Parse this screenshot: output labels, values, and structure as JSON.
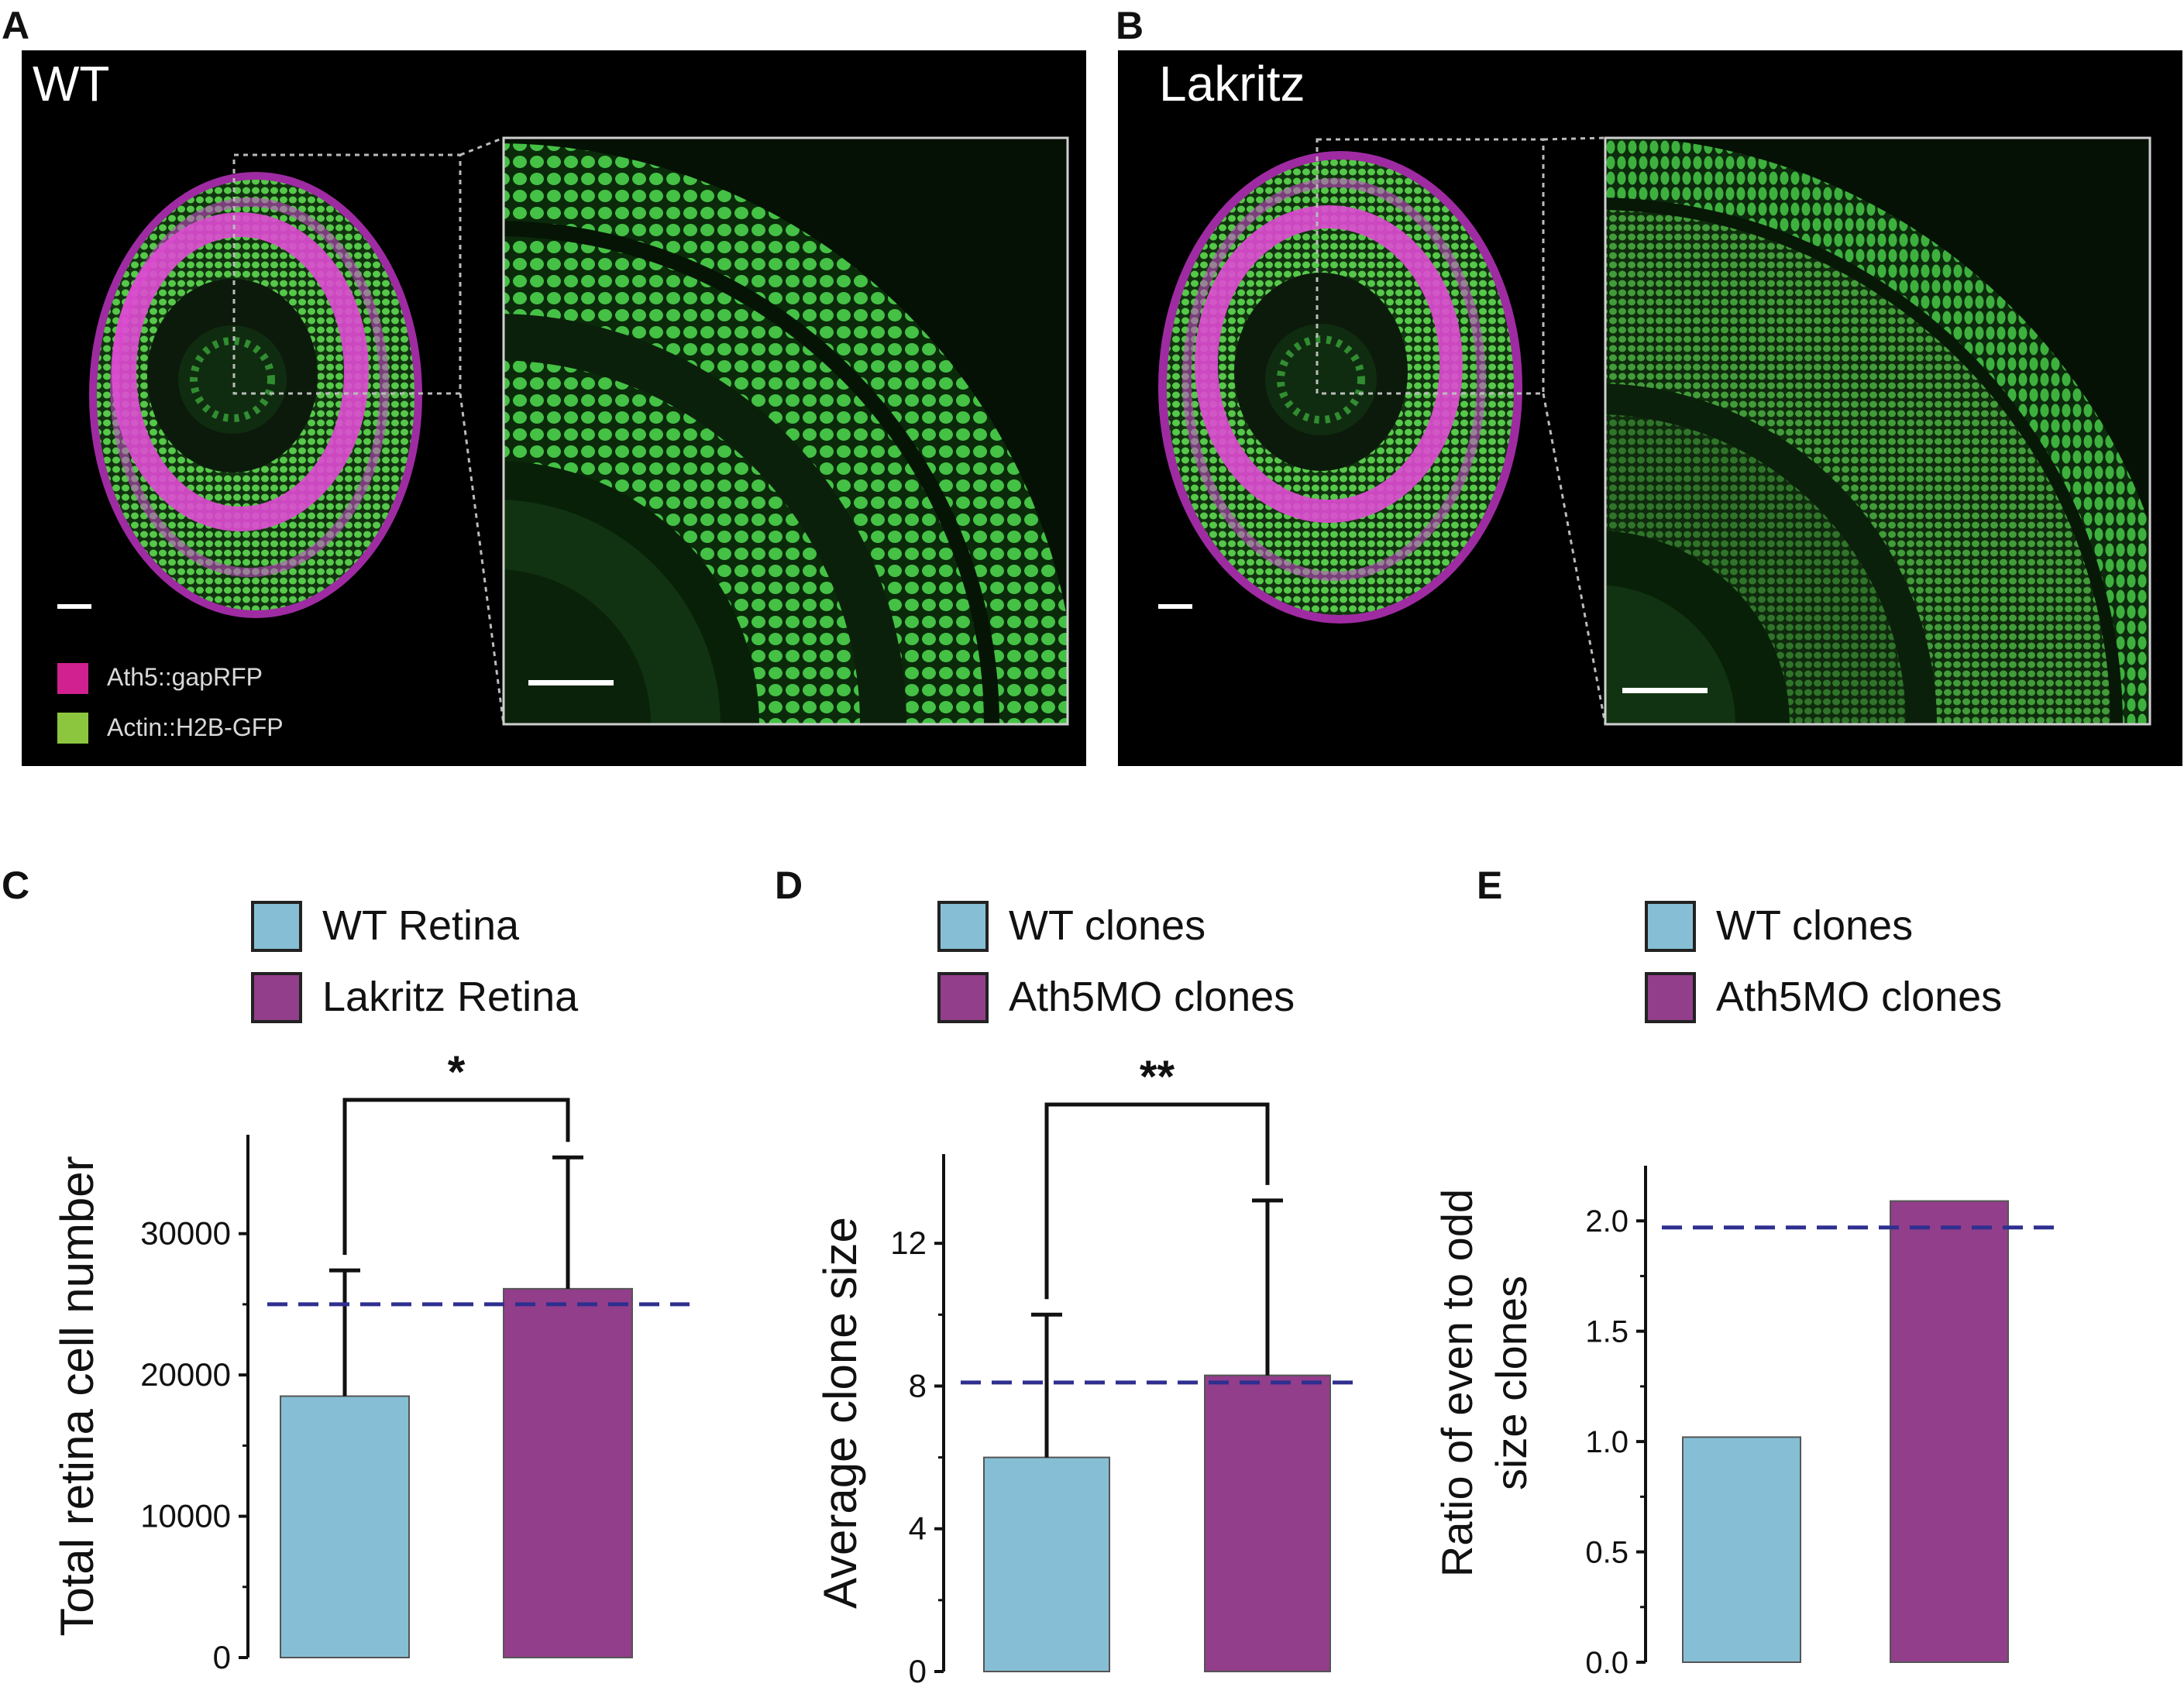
{
  "panels": {
    "A": {
      "letter": "A",
      "title": "WT",
      "legend": [
        {
          "label": "Ath5::gapRFP",
          "color": "#d1208f"
        },
        {
          "label": "Actin::H2B-GFP",
          "color": "#8cc63f"
        }
      ]
    },
    "B": {
      "letter": "B",
      "title": "Lakritz"
    }
  },
  "colors": {
    "wt_bar": "#86bfd5",
    "mut_bar": "#923e8b",
    "dashed": "#2e2f8f",
    "gfp": "#46c846",
    "rfp": "#d02ad8"
  },
  "chart_data": [
    {
      "letter": "C",
      "type": "bar",
      "categories": [
        "WT Retina",
        "Lakritz Retina"
      ],
      "values": [
        18500,
        26100
      ],
      "error_upper": [
        27400,
        35400
      ],
      "ylabel": "Total retina cell number",
      "ylim": [
        0,
        37000
      ],
      "yticks": [
        0,
        10000,
        20000,
        30000
      ],
      "ytick_labels": [
        "0",
        "10000",
        "20000",
        "30000"
      ],
      "reference_line": 25000,
      "significance": "*",
      "legend": [
        "WT Retina",
        "Lakritz Retina"
      ]
    },
    {
      "letter": "D",
      "type": "bar",
      "categories": [
        "WT clones",
        "Ath5MO clones"
      ],
      "values": [
        6.0,
        8.3
      ],
      "error_upper": [
        10.0,
        13.2
      ],
      "ylabel": "Average clone size",
      "ylim": [
        0,
        14.5
      ],
      "yticks": [
        0,
        4,
        8,
        12
      ],
      "ytick_labels": [
        "0",
        "4",
        "8",
        "12"
      ],
      "reference_line": 8.1,
      "significance": "**",
      "legend": [
        "WT clones",
        "Ath5MO clones"
      ]
    },
    {
      "letter": "E",
      "type": "bar",
      "categories": [
        "WT clones",
        "Ath5MO clones"
      ],
      "values": [
        1.02,
        2.09
      ],
      "error_upper": null,
      "ylabel_lines": [
        "Ratio of even to odd",
        "size clones"
      ],
      "ylim": [
        0,
        2.25
      ],
      "yticks": [
        0,
        0.5,
        1.0,
        1.5,
        2.0
      ],
      "ytick_labels": [
        "0.0",
        "0.5",
        "1.0",
        "1.5",
        "2.0"
      ],
      "reference_line": 1.97,
      "significance": "",
      "legend": [
        "WT clones",
        "Ath5MO clones"
      ]
    }
  ]
}
